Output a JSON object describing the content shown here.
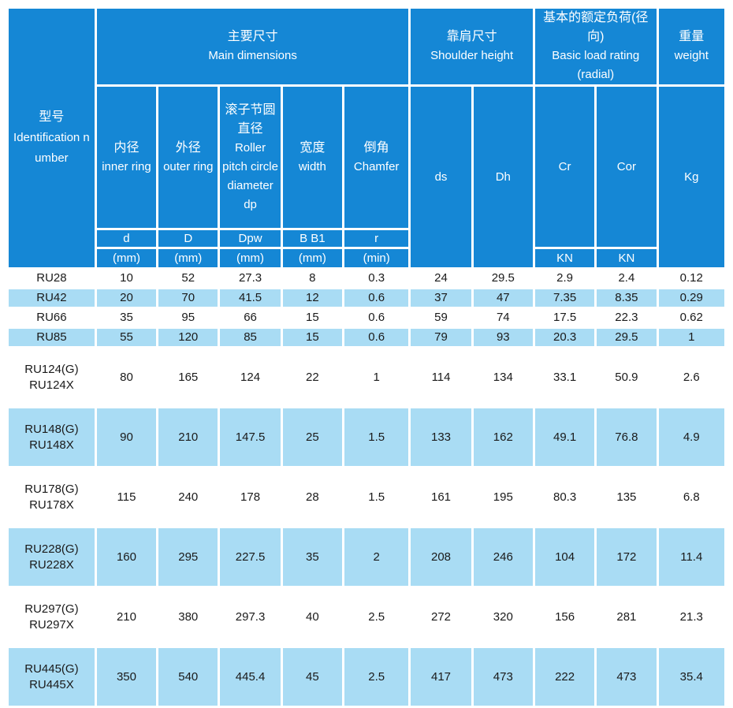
{
  "colors": {
    "header_blue": "#1587d5",
    "row_alt_blue": "#a9dcf4",
    "row_white": "#ffffff",
    "header_text": "#ffffff",
    "data_text": "#1a1a1a"
  },
  "table": {
    "identification": {
      "zh": "型号",
      "en": "Identification number"
    },
    "groups": {
      "main_dimensions": {
        "zh": "主要尺寸",
        "en": "Main dimensions"
      },
      "shoulder_height": {
        "zh": "靠肩尺寸",
        "en": "Shoulder height"
      },
      "basic_load": {
        "zh": "基本的额定负荷(径向)",
        "en": "Basic load rating",
        "en2": "(radial)"
      },
      "weight": {
        "zh": "重量",
        "en": "weight"
      }
    },
    "columns": {
      "inner": {
        "zh": "内径",
        "en": "inner ring",
        "symbol": "d",
        "unit": "(mm)"
      },
      "outer": {
        "zh": "外径",
        "en": "outer ring",
        "symbol": "D",
        "unit": "(mm)"
      },
      "pitch": {
        "zh": "滚子节圆直径",
        "en": "Roller pitch circle diameter dp",
        "symbol": "Dpw",
        "unit": "(mm)"
      },
      "width": {
        "zh": "宽度",
        "en": "width",
        "symbol": "B B1",
        "unit": "(mm)"
      },
      "chamfer": {
        "zh": "倒角",
        "en": "Chamfer",
        "symbol": "r",
        "unit": "(min)"
      },
      "ds": {
        "label": "ds"
      },
      "dh": {
        "label": "Dh"
      },
      "cr": {
        "label": "Cr",
        "unit": "KN"
      },
      "cor": {
        "label": "Cor",
        "unit": "KN"
      },
      "kg": {
        "label": "Kg"
      }
    },
    "rows": [
      {
        "model": [
          "RU28"
        ],
        "values": [
          "10",
          "52",
          "27.3",
          "8",
          "0.3",
          "24",
          "29.5",
          "2.9",
          "2.4",
          "0.12"
        ]
      },
      {
        "model": [
          "RU42"
        ],
        "values": [
          "20",
          "70",
          "41.5",
          "12",
          "0.6",
          "37",
          "47",
          "7.35",
          "8.35",
          "0.29"
        ]
      },
      {
        "model": [
          "RU66"
        ],
        "values": [
          "35",
          "95",
          "66",
          "15",
          "0.6",
          "59",
          "74",
          "17.5",
          "22.3",
          "0.62"
        ]
      },
      {
        "model": [
          "RU85"
        ],
        "values": [
          "55",
          "120",
          "85",
          "15",
          "0.6",
          "79",
          "93",
          "20.3",
          "29.5",
          "1"
        ]
      },
      {
        "model": [
          "RU124(G)",
          "RU124X"
        ],
        "values": [
          "80",
          "165",
          "124",
          "22",
          "1",
          "114",
          "134",
          "33.1",
          "50.9",
          "2.6"
        ]
      },
      {
        "model": [
          "RU148(G)",
          "RU148X"
        ],
        "values": [
          "90",
          "210",
          "147.5",
          "25",
          "1.5",
          "133",
          "162",
          "49.1",
          "76.8",
          "4.9"
        ]
      },
      {
        "model": [
          "RU178(G)",
          "RU178X"
        ],
        "values": [
          "115",
          "240",
          "178",
          "28",
          "1.5",
          "161",
          "195",
          "80.3",
          "135",
          "6.8"
        ]
      },
      {
        "model": [
          "RU228(G)",
          "RU228X"
        ],
        "values": [
          "160",
          "295",
          "227.5",
          "35",
          "2",
          "208",
          "246",
          "104",
          "172",
          "11.4"
        ]
      },
      {
        "model": [
          "RU297(G)",
          "RU297X"
        ],
        "values": [
          "210",
          "380",
          "297.3",
          "40",
          "2.5",
          "272",
          "320",
          "156",
          "281",
          "21.3"
        ]
      },
      {
        "model": [
          "RU445(G)",
          "RU445X"
        ],
        "values": [
          "350",
          "540",
          "445.4",
          "45",
          "2.5",
          "417",
          "473",
          "222",
          "473",
          "35.4"
        ]
      }
    ]
  }
}
